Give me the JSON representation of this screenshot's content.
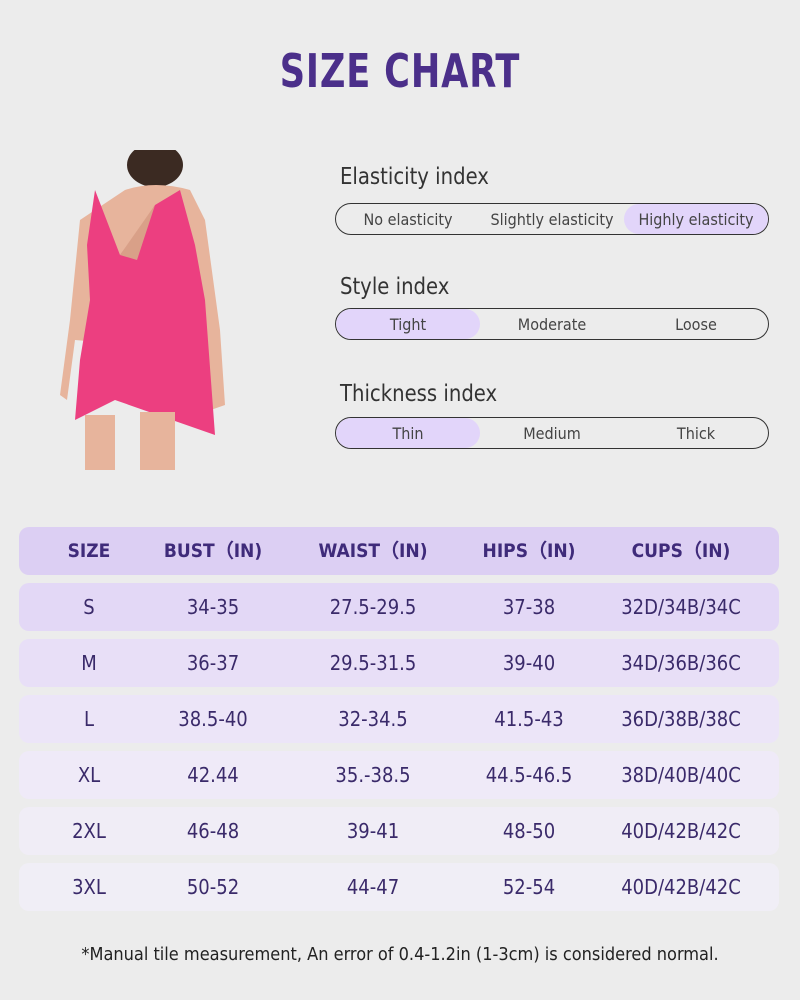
{
  "title": "SIZE CHART",
  "indices": [
    {
      "label": "Elasticity index",
      "options": [
        "No elasticity",
        "Slightly elasticity",
        "Highly elasticity"
      ],
      "selected": 2
    },
    {
      "label": "Style index",
      "options": [
        "Tight",
        "Moderate",
        "Loose"
      ],
      "selected": 0
    },
    {
      "label": "Thickness index",
      "options": [
        "Thin",
        "Medium",
        "Thick"
      ],
      "selected": 0
    }
  ],
  "table": {
    "headers": [
      "SIZE",
      "BUST（IN)",
      "WAIST（IN)",
      "HIPS（IN)",
      "CUPS（IN)"
    ],
    "rows": [
      [
        "S",
        "34-35",
        "27.5-29.5",
        "37-38",
        "32D/34B/34C"
      ],
      [
        "M",
        "36-37",
        "29.5-31.5",
        "39-40",
        "34D/36B/36C"
      ],
      [
        "L",
        "38.5-40",
        "32-34.5",
        "41.5-43",
        "36D/38B/38C"
      ],
      [
        "XL",
        "42.44",
        "35.-38.5",
        "44.5-46.5",
        "38D/40B/40C"
      ],
      [
        "2XL",
        "46-48",
        "39-41",
        "48-50",
        "40D/42B/42C"
      ],
      [
        "3XL",
        "50-52",
        "44-47",
        "52-54",
        "40D/42B/42C"
      ]
    ]
  },
  "note": "*Manual tile measurement, An error of 0.4-1.2in (1-3cm) is considered normal.",
  "colors": {
    "title": "#4b2f8a",
    "selected": "#e2d5fa",
    "header": "#dccff3",
    "product": "#f0407f"
  }
}
